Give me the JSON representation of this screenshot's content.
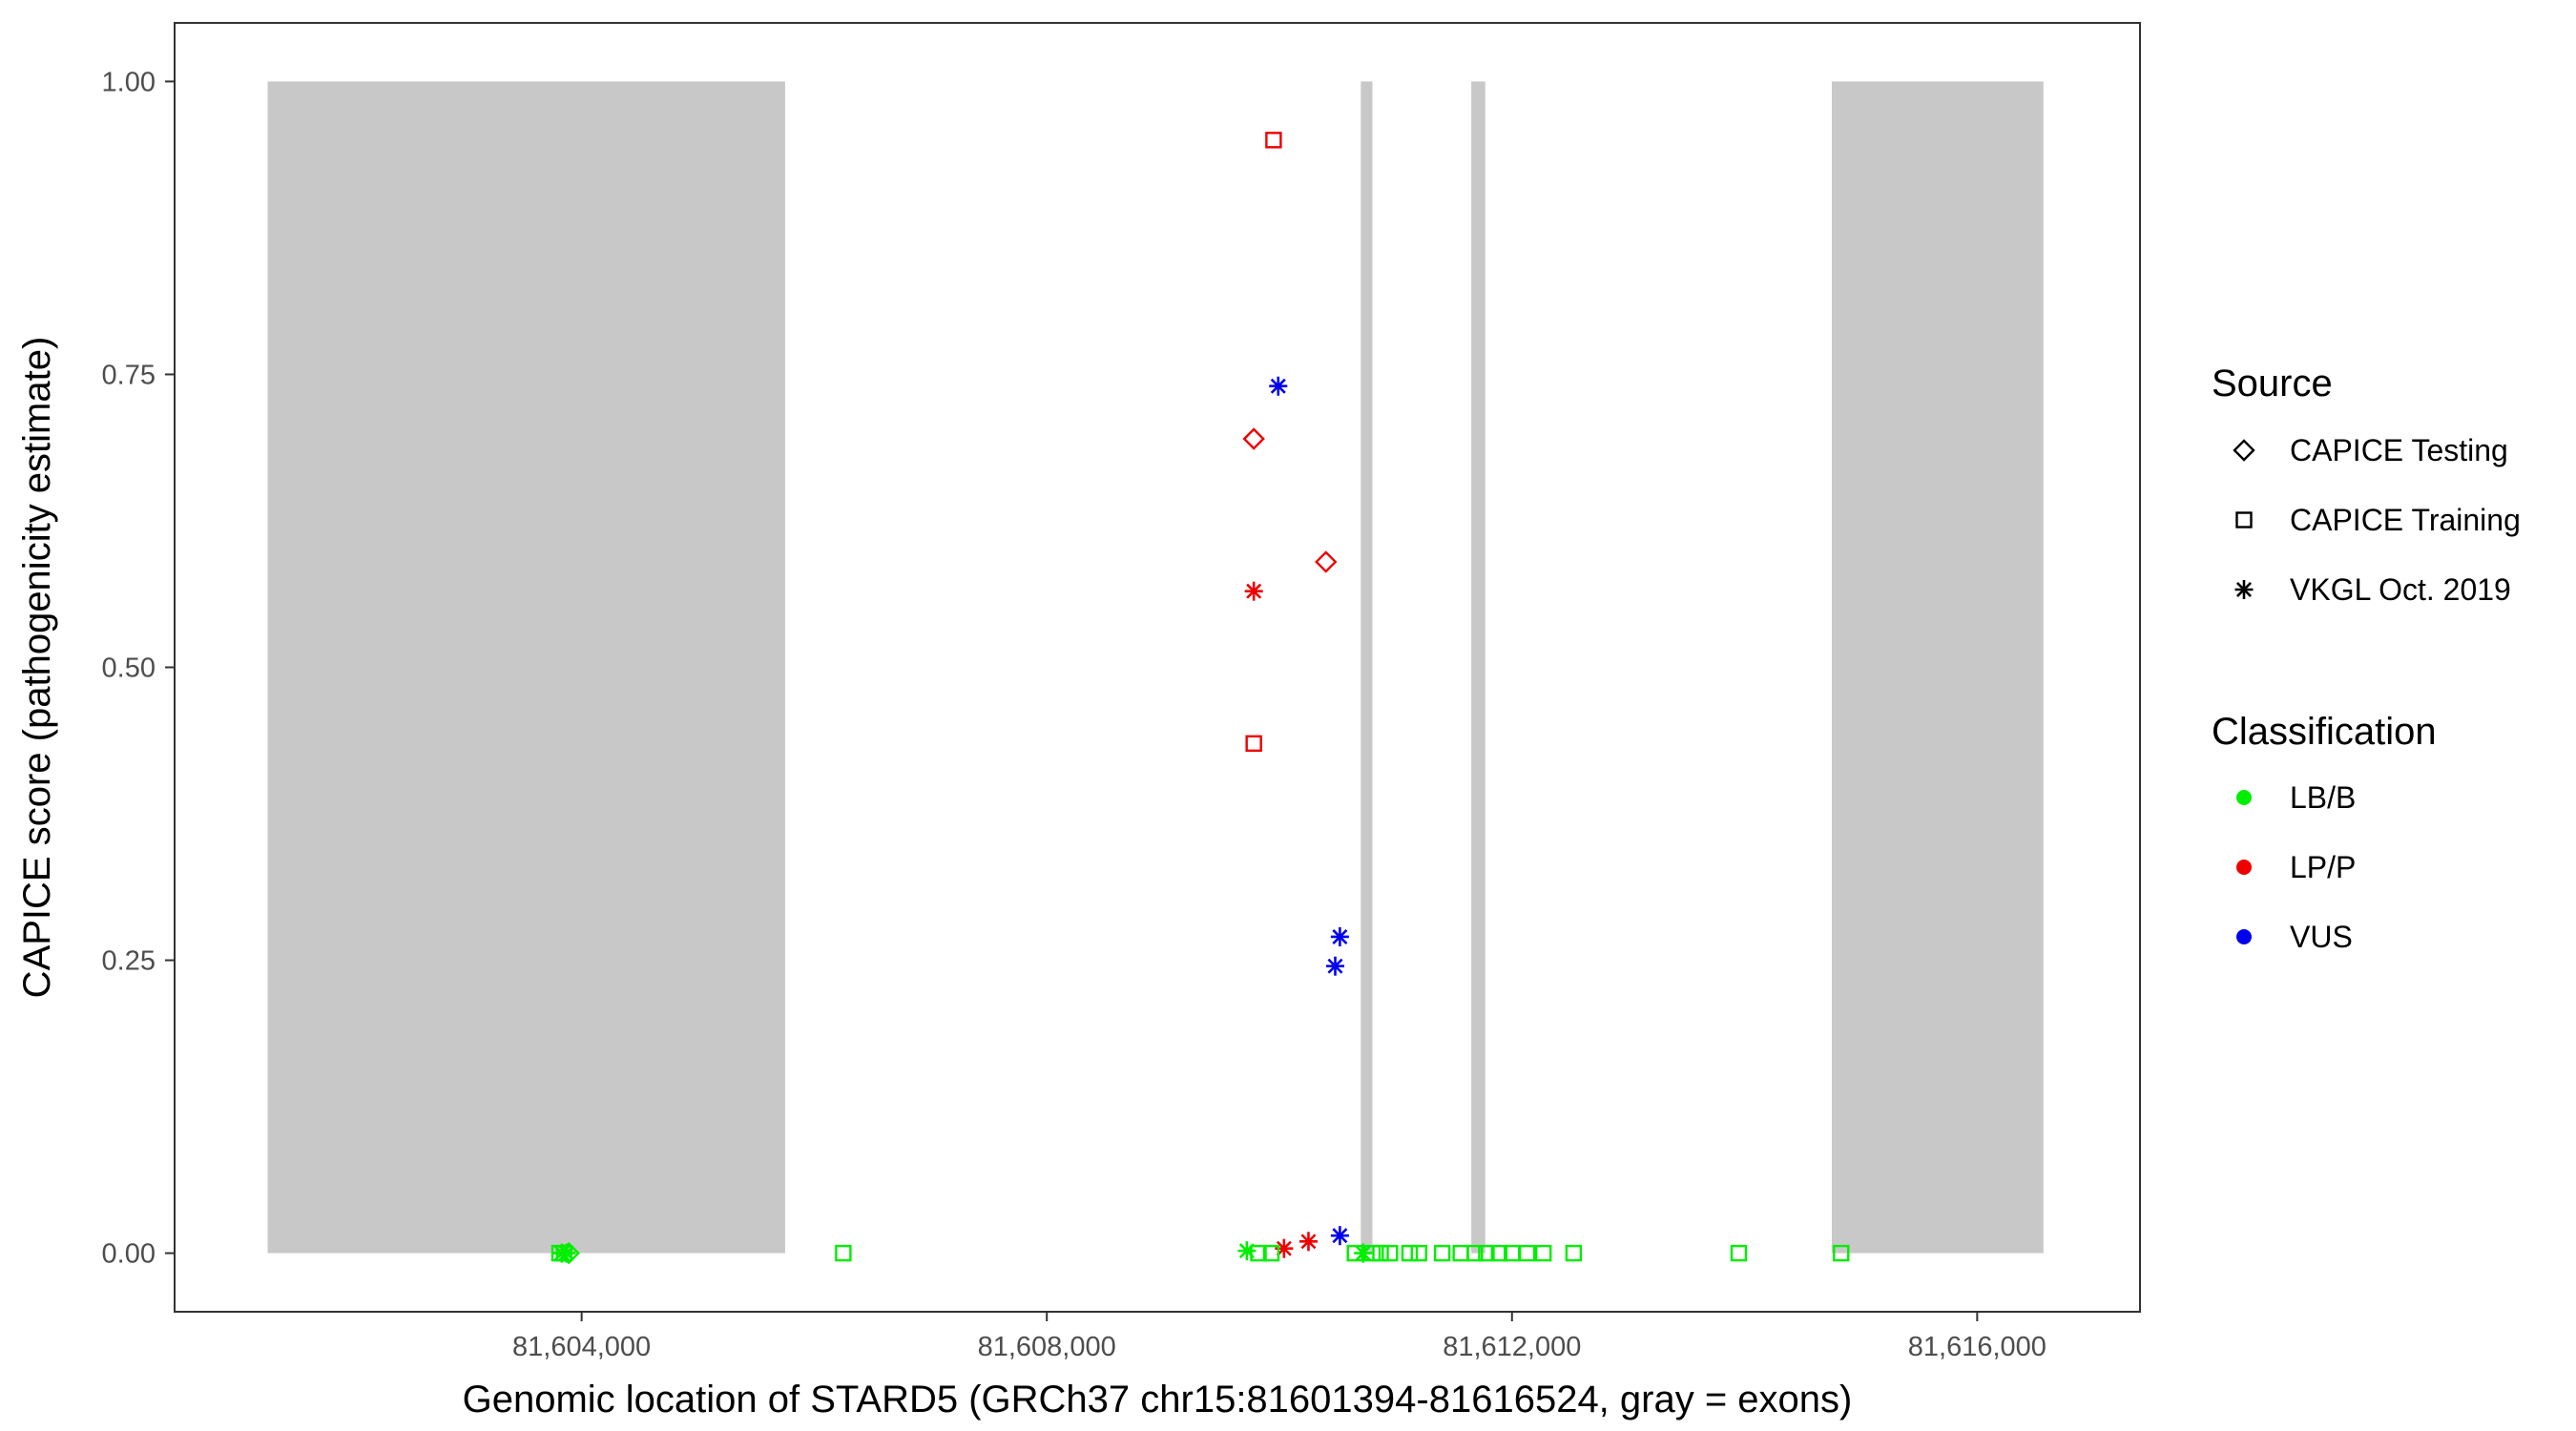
{
  "chart_data": {
    "type": "scatter",
    "xlabel": "Genomic location of STARD5 (GRCh37 chr15:81601394-81616524, gray = exons)",
    "ylabel": "CAPICE score (pathogenicity estimate)",
    "xlim": [
      81600500,
      81617400
    ],
    "ylim": [
      -0.05,
      1.05
    ],
    "x_ticks": [
      81604000,
      81608000,
      81612000,
      81616000
    ],
    "x_tick_labels": [
      "81,604,000",
      "81,608,000",
      "81,612,000",
      "81,616,000"
    ],
    "y_ticks": [
      0,
      0.25,
      0.5,
      0.75,
      1.0
    ],
    "y_tick_labels": [
      "0.00",
      "0.25",
      "0.50",
      "0.75",
      "1.00"
    ],
    "grid": false,
    "exons": [
      {
        "start": 81601300,
        "end": 81605750
      },
      {
        "start": 81610700,
        "end": 81610800
      },
      {
        "start": 81611650,
        "end": 81611770
      },
      {
        "start": 81614750,
        "end": 81616570
      }
    ],
    "exon_color": "#c8c8c8",
    "legend": {
      "placement": "right",
      "source": {
        "title": "Source",
        "items": [
          {
            "label": "CAPICE Testing",
            "shape": "diamond"
          },
          {
            "label": "CAPICE Training",
            "shape": "square"
          },
          {
            "label": "VKGL Oct. 2019",
            "shape": "asterisk"
          }
        ]
      },
      "classification": {
        "title": "Classification",
        "items": [
          {
            "label": "LB/B",
            "color": "#00ee00"
          },
          {
            "label": "LP/P",
            "color": "#ee0000"
          },
          {
            "label": "VUS",
            "color": "#0000ee"
          }
        ]
      }
    },
    "points": [
      {
        "x": 81609950,
        "y": 0.95,
        "source": "CAPICE Training",
        "class": "LP/P"
      },
      {
        "x": 81609990,
        "y": 0.74,
        "source": "VKGL Oct. 2019",
        "class": "VUS"
      },
      {
        "x": 81609780,
        "y": 0.695,
        "source": "CAPICE Testing",
        "class": "LP/P"
      },
      {
        "x": 81610400,
        "y": 0.59,
        "source": "CAPICE Testing",
        "class": "LP/P"
      },
      {
        "x": 81609780,
        "y": 0.565,
        "source": "VKGL Oct. 2019",
        "class": "LP/P"
      },
      {
        "x": 81609780,
        "y": 0.435,
        "source": "CAPICE Training",
        "class": "LP/P"
      },
      {
        "x": 81610520,
        "y": 0.27,
        "source": "VKGL Oct. 2019",
        "class": "VUS"
      },
      {
        "x": 81610480,
        "y": 0.245,
        "source": "VKGL Oct. 2019",
        "class": "VUS"
      },
      {
        "x": 81610520,
        "y": 0.015,
        "source": "VKGL Oct. 2019",
        "class": "VUS"
      },
      {
        "x": 81610250,
        "y": 0.01,
        "source": "VKGL Oct. 2019",
        "class": "LP/P"
      },
      {
        "x": 81610040,
        "y": 0.004,
        "source": "VKGL Oct. 2019",
        "class": "LP/P"
      },
      {
        "x": 81603830,
        "y": 0.0,
        "source": "VKGL Oct. 2019",
        "class": "LB/B"
      },
      {
        "x": 81603870,
        "y": 0.0,
        "source": "VKGL Oct. 2019",
        "class": "LB/B"
      },
      {
        "x": 81603810,
        "y": 0.0,
        "source": "CAPICE Training",
        "class": "LB/B"
      },
      {
        "x": 81603850,
        "y": 0.0,
        "source": "CAPICE Training",
        "class": "LB/B"
      },
      {
        "x": 81603890,
        "y": 0.0,
        "source": "CAPICE Testing",
        "class": "LB/B"
      },
      {
        "x": 81606250,
        "y": 0.0,
        "source": "CAPICE Training",
        "class": "LB/B"
      },
      {
        "x": 81609720,
        "y": 0.002,
        "source": "VKGL Oct. 2019",
        "class": "LB/B"
      },
      {
        "x": 81609820,
        "y": 0.0,
        "source": "CAPICE Training",
        "class": "LB/B"
      },
      {
        "x": 81609930,
        "y": 0.0,
        "source": "CAPICE Training",
        "class": "LB/B"
      },
      {
        "x": 81610650,
        "y": 0.0,
        "source": "CAPICE Training",
        "class": "LB/B"
      },
      {
        "x": 81610720,
        "y": 0.0,
        "source": "VKGL Oct. 2019",
        "class": "LB/B"
      },
      {
        "x": 81610800,
        "y": 0.0,
        "source": "CAPICE Training",
        "class": "LB/B"
      },
      {
        "x": 81610870,
        "y": 0.0,
        "source": "CAPICE Training",
        "class": "LB/B"
      },
      {
        "x": 81610950,
        "y": 0.0,
        "source": "CAPICE Training",
        "class": "LB/B"
      },
      {
        "x": 81611120,
        "y": 0.0,
        "source": "CAPICE Training",
        "class": "LB/B"
      },
      {
        "x": 81611200,
        "y": 0.0,
        "source": "CAPICE Training",
        "class": "LB/B"
      },
      {
        "x": 81611400,
        "y": 0.0,
        "source": "CAPICE Training",
        "class": "LB/B"
      },
      {
        "x": 81611560,
        "y": 0.0,
        "source": "CAPICE Training",
        "class": "LB/B"
      },
      {
        "x": 81611680,
        "y": 0.0,
        "source": "CAPICE Training",
        "class": "LB/B"
      },
      {
        "x": 81611780,
        "y": 0.0,
        "source": "CAPICE Training",
        "class": "LB/B"
      },
      {
        "x": 81611890,
        "y": 0.0,
        "source": "CAPICE Training",
        "class": "LB/B"
      },
      {
        "x": 81612000,
        "y": 0.0,
        "source": "CAPICE Training",
        "class": "LB/B"
      },
      {
        "x": 81612130,
        "y": 0.0,
        "source": "CAPICE Training",
        "class": "LB/B"
      },
      {
        "x": 81612270,
        "y": 0.0,
        "source": "CAPICE Training",
        "class": "LB/B"
      },
      {
        "x": 81612530,
        "y": 0.0,
        "source": "CAPICE Training",
        "class": "LB/B"
      },
      {
        "x": 81613950,
        "y": 0.0,
        "source": "CAPICE Training",
        "class": "LB/B"
      },
      {
        "x": 81614830,
        "y": 0.0,
        "source": "CAPICE Training",
        "class": "LB/B"
      }
    ]
  }
}
